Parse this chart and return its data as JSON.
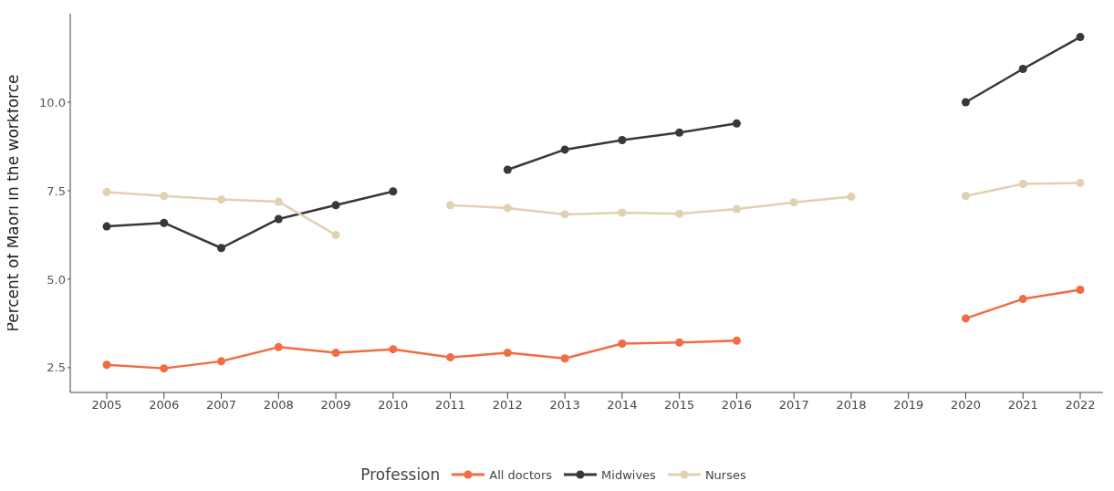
{
  "chart_data": {
    "type": "line",
    "ylabel": "Percent of Māori in the workforce",
    "legend_title": "Profession",
    "categories": [
      "2005",
      "2006",
      "2007",
      "2008",
      "2009",
      "2010",
      "2011",
      "2012",
      "2013",
      "2014",
      "2015",
      "2016",
      "2017",
      "2018",
      "2019",
      "2020",
      "2021",
      "2022"
    ],
    "series": [
      {
        "name": "All doctors",
        "color": "#f26b43",
        "values": [
          2.58,
          2.48,
          2.68,
          3.08,
          2.92,
          3.02,
          2.79,
          2.92,
          2.76,
          3.18,
          3.21,
          3.26,
          null,
          null,
          null,
          3.89,
          4.44,
          4.7
        ]
      },
      {
        "name": "Midwives",
        "color": "#3d3538",
        "values": [
          6.49,
          6.59,
          5.88,
          6.7,
          7.09,
          7.48,
          null,
          8.09,
          8.66,
          8.93,
          9.14,
          9.4,
          null,
          null,
          null,
          10.0,
          10.94,
          11.84
        ]
      },
      {
        "name": "Nurses",
        "color": "#e2d1b1",
        "values": [
          7.46,
          7.35,
          7.25,
          7.19,
          6.25,
          null,
          7.09,
          7.01,
          6.83,
          6.88,
          6.85,
          6.98,
          7.17,
          7.33,
          null,
          7.35,
          7.69,
          7.72
        ]
      }
    ],
    "ylim": [
      1.8,
      12.5
    ],
    "yticks": [
      {
        "value": 2.5,
        "label": "2.5"
      },
      {
        "value": 5,
        "label": "5.0"
      },
      {
        "value": 7.5,
        "label": "7.5"
      },
      {
        "value": 10,
        "label": "10.0"
      }
    ],
    "grid": false,
    "legend": "bottom",
    "marker": "circle",
    "line_style": "solid"
  }
}
